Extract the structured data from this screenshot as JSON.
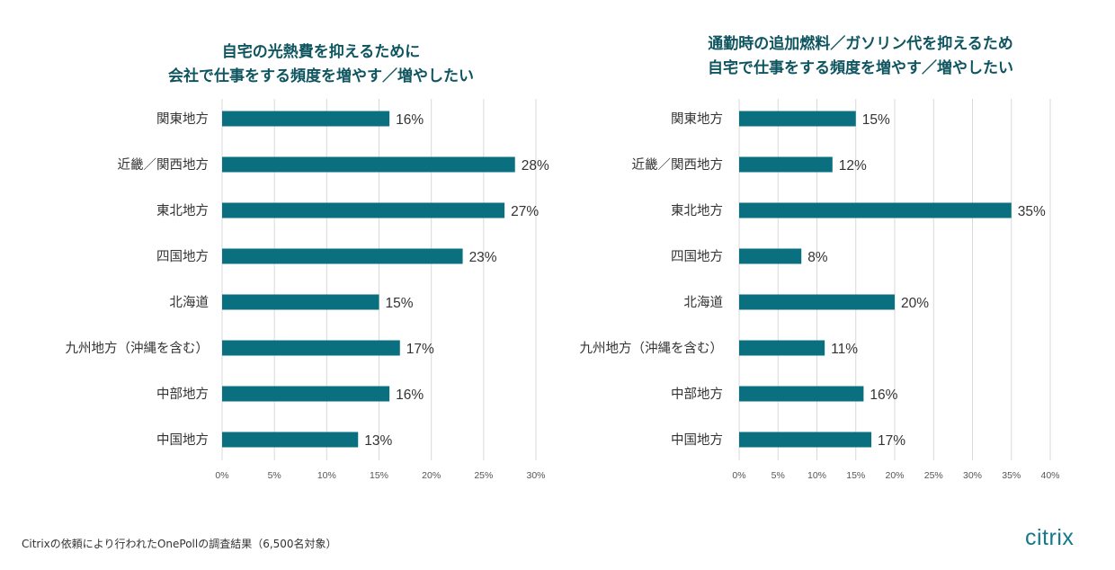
{
  "colors": {
    "bar": "#0a7080",
    "title": "#0f5560",
    "logo": "#147a8a",
    "grid": "#d9d9d9",
    "text": "#333333"
  },
  "chart_data": [
    {
      "type": "bar",
      "orientation": "horizontal",
      "title_lines": [
        "自宅の光熱費を抑えるために",
        "会社で仕事をする頻度を増やす／増やしたい"
      ],
      "categories": [
        "関東地方",
        "近畿／関西地方",
        "東北地方",
        "四国地方",
        "北海道",
        "九州地方（沖縄を含む）",
        "中部地方",
        "中国地方"
      ],
      "values": [
        16,
        28,
        27,
        23,
        15,
        17,
        16,
        13
      ],
      "data_labels": [
        "16%",
        "28%",
        "27%",
        "23%",
        "15%",
        "17%",
        "16%",
        "13%"
      ],
      "xlim": [
        0,
        30
      ],
      "xticks": [
        0,
        5,
        10,
        15,
        20,
        25,
        30
      ],
      "xtick_labels": [
        "0%",
        "5%",
        "10%",
        "15%",
        "20%",
        "25%",
        "30%"
      ],
      "grid": true,
      "legend": "none"
    },
    {
      "type": "bar",
      "orientation": "horizontal",
      "title_lines": [
        "通勤時の追加燃料／ガソリン代を抑えるため",
        "自宅で仕事をする頻度を増やす／増やしたい"
      ],
      "categories": [
        "関東地方",
        "近畿／関西地方",
        "東北地方",
        "四国地方",
        "北海道",
        "九州地方（沖縄を含む）",
        "中部地方",
        "中国地方"
      ],
      "values": [
        15,
        12,
        35,
        8,
        20,
        11,
        16,
        17
      ],
      "data_labels": [
        "15%",
        "12%",
        "35%",
        "8%",
        "20%",
        "11%",
        "16%",
        "17%"
      ],
      "xlim": [
        0,
        40
      ],
      "xticks": [
        0,
        5,
        10,
        15,
        20,
        25,
        30,
        35,
        40
      ],
      "xtick_labels": [
        "0%",
        "5%",
        "10%",
        "15%",
        "20%",
        "25%",
        "30%",
        "35%",
        "40%"
      ],
      "grid": true,
      "legend": "none"
    }
  ],
  "footnote": "Citrixの依頼により行われたOnePollの調査結果（6,500名対象）",
  "logo_text": "citrix"
}
